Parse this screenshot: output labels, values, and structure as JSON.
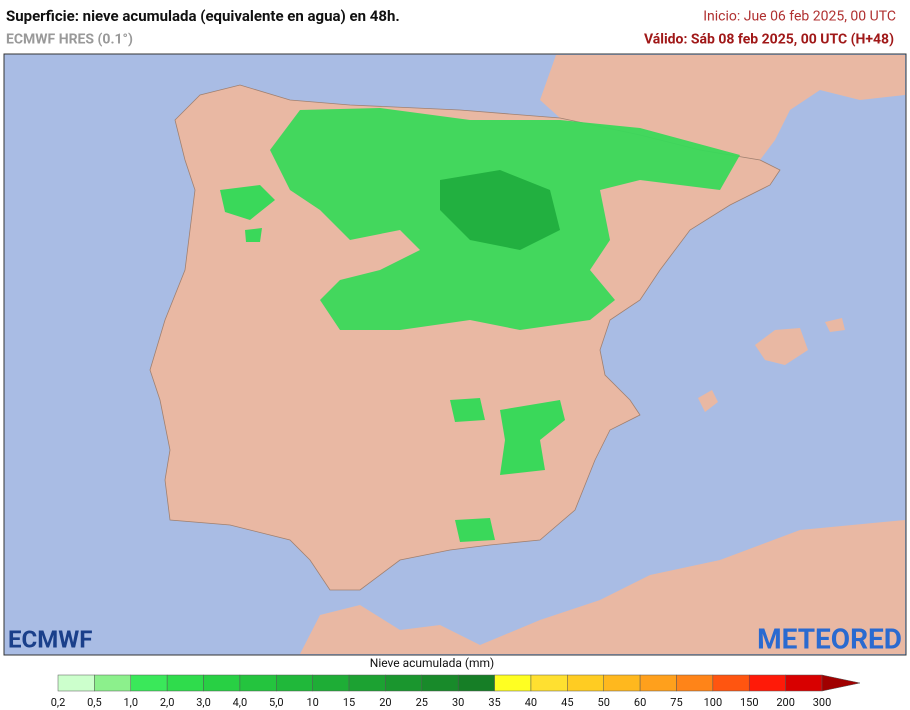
{
  "header": {
    "title": "Superficie: nieve acumulada (equivalente en agua) en 48h.",
    "model": "ECMWF HRES (0.1°)",
    "init": "Inicio: Jue 06 feb 2025, 00 UTC",
    "valid": "Válido: Sáb 08 feb 2025, 00 UTC (H+48)"
  },
  "logos": {
    "left": "ECMWF",
    "right": "METEORED"
  },
  "legend": {
    "title": "Nieve acumulada (mm)",
    "ticks": [
      "0,2",
      "0,5",
      "1,0",
      "2,0",
      "3,0",
      "4,0",
      "5,0",
      "10",
      "15",
      "20",
      "25",
      "30",
      "35",
      "40",
      "45",
      "50",
      "60",
      "75",
      "100",
      "150",
      "200",
      "300"
    ],
    "colors": [
      "#ccffcc",
      "#8cf08c",
      "#3ae85a",
      "#2fdc4c",
      "#28d044",
      "#24c43e",
      "#20b83a",
      "#1ead36",
      "#1ca232",
      "#1a962e",
      "#188a2a",
      "#167e26",
      "#ffff22",
      "#ffe030",
      "#ffcc22",
      "#ffb81e",
      "#ffa01c",
      "#ff8418",
      "#ff5510",
      "#ff1a08",
      "#d80000"
    ],
    "arrow_color": "#a00000"
  }
}
